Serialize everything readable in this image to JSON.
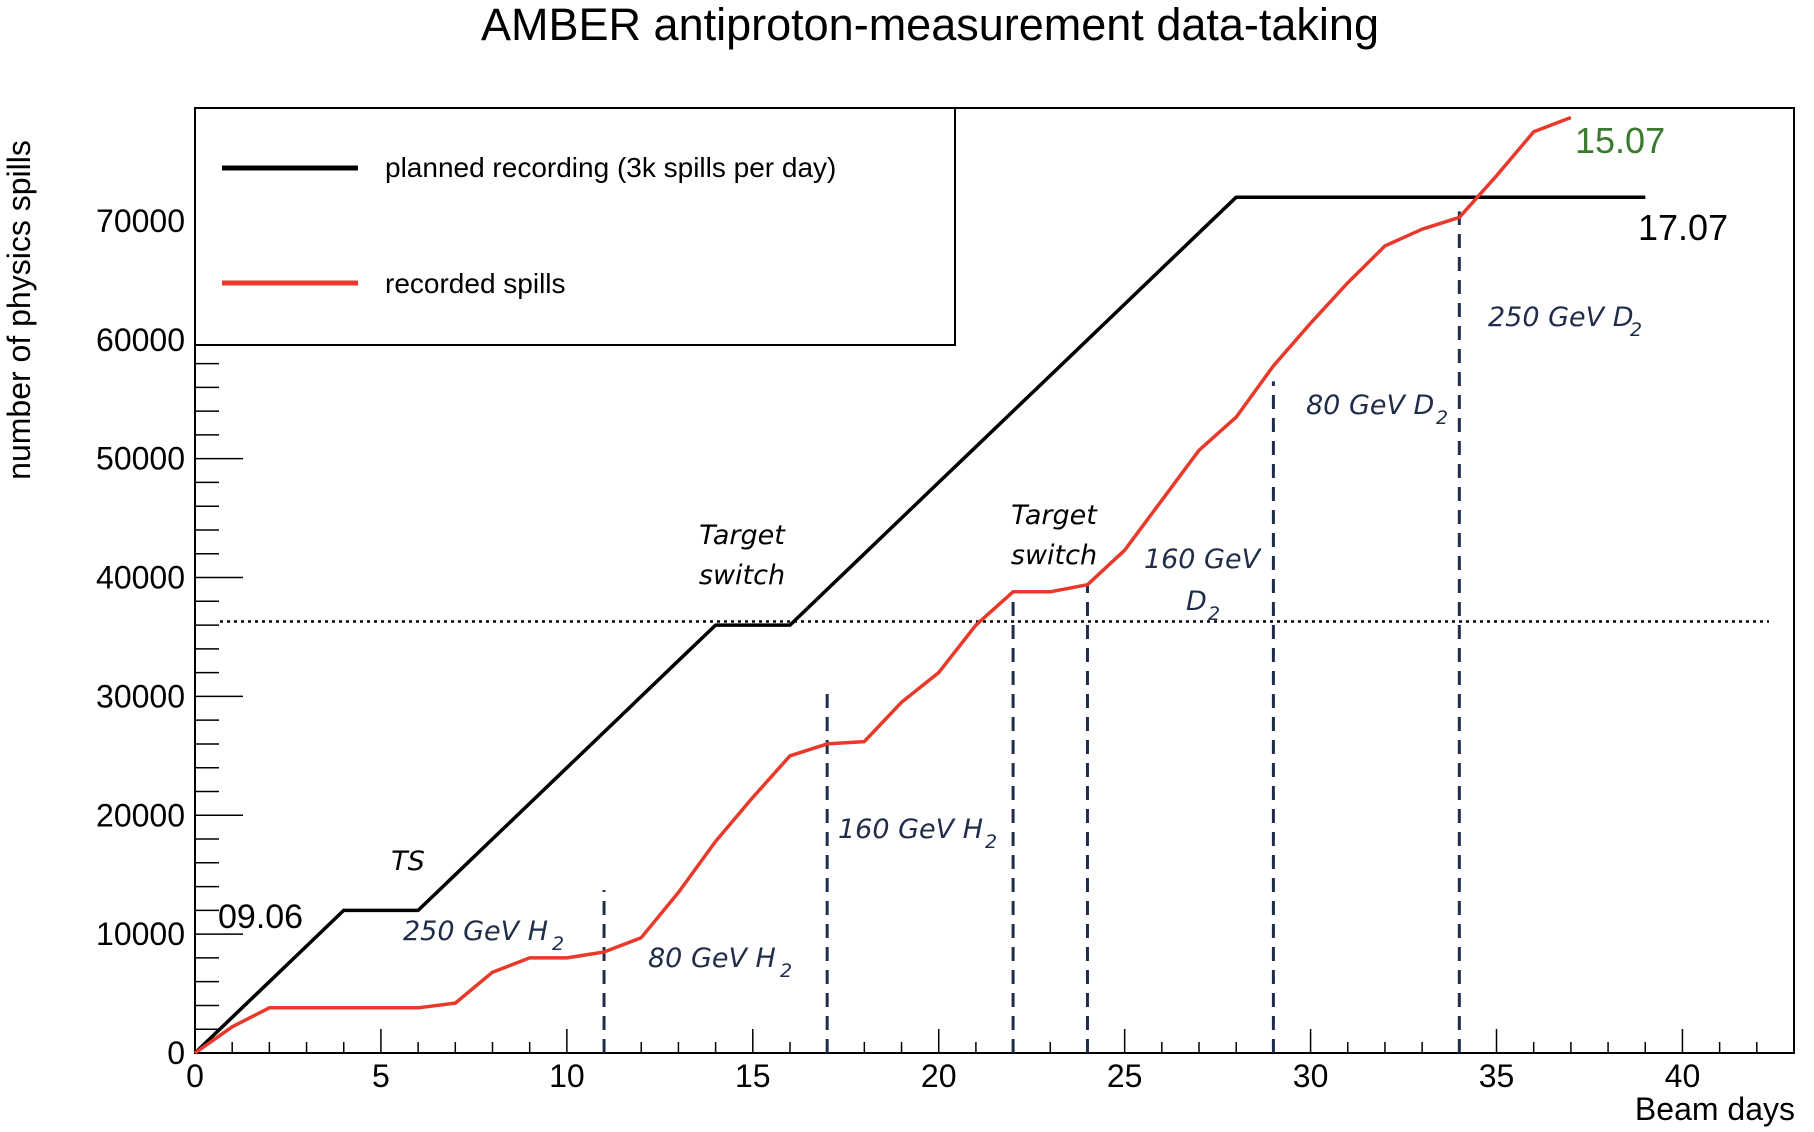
{
  "chart_data": {
    "type": "line",
    "title": "AMBER antiproton-measurement data-taking",
    "xlabel": "Beam days",
    "ylabel": "number of physics spills",
    "xlim": [
      0,
      43
    ],
    "ylim": [
      0,
      79500
    ],
    "x_ticks": [
      0,
      5,
      10,
      15,
      20,
      25,
      30,
      35,
      40
    ],
    "y_ticks": [
      0,
      10000,
      20000,
      30000,
      40000,
      50000,
      60000,
      70000
    ],
    "x_minor_step": 1,
    "y_minor_step": 2000,
    "grid": false,
    "legend_position": "top-left",
    "series": [
      {
        "name": "planned recording (3k spills per day)",
        "color": "#000000",
        "x": [
          0,
          1,
          2,
          3,
          4,
          5,
          6,
          7,
          8,
          9,
          10,
          11,
          12,
          13,
          14,
          15,
          16,
          17,
          18,
          19,
          20,
          21,
          22,
          23,
          24,
          25,
          26,
          27,
          28,
          29,
          30,
          31,
          32,
          33,
          34,
          35,
          36,
          37,
          38,
          39
        ],
        "y": [
          0,
          3000,
          6000,
          9000,
          12000,
          12000,
          12000,
          15000,
          18000,
          21000,
          24000,
          27000,
          30000,
          33000,
          36000,
          36000,
          36000,
          39000,
          42000,
          45000,
          48000,
          51000,
          54000,
          57000,
          60000,
          63000,
          66000,
          69000,
          72000,
          72000,
          72000,
          72000,
          72000,
          72000,
          72000,
          72000,
          72000,
          72000,
          72000,
          72000
        ]
      },
      {
        "name": "recorded spills",
        "color": "#e8392b",
        "x": [
          0,
          1,
          2,
          3,
          4,
          5,
          6,
          7,
          8,
          9,
          10,
          11,
          12,
          13,
          14,
          15,
          16,
          17,
          18,
          19,
          20,
          21,
          22,
          23,
          24,
          25,
          26,
          27,
          28,
          29,
          30,
          31,
          32,
          33,
          34,
          35,
          36,
          37
        ],
        "y": [
          0,
          2200,
          3800,
          3800,
          3800,
          3800,
          3800,
          4200,
          6800,
          8000,
          8000,
          8500,
          9700,
          13500,
          17800,
          21500,
          25000,
          26000,
          26200,
          29500,
          32000,
          36000,
          38800,
          38800,
          39400,
          42300,
          46500,
          50700,
          53500,
          57800,
          61400,
          64800,
          67900,
          69300,
          70300,
          73800,
          77500,
          78700
        ]
      }
    ],
    "reference_lines": [
      {
        "orientation": "horizontal",
        "y": 36300,
        "style": "dotted"
      },
      {
        "orientation": "vertical",
        "x": 11,
        "y_top": 13700,
        "style": "dashed"
      },
      {
        "orientation": "vertical",
        "x": 17,
        "y_top": 30700,
        "style": "dashed"
      },
      {
        "orientation": "vertical",
        "x": 22,
        "y_top": 38700,
        "style": "dashed"
      },
      {
        "orientation": "vertical",
        "x": 24,
        "y_top": 39300,
        "style": "dashed"
      },
      {
        "orientation": "vertical",
        "x": 29,
        "y_top": 56500,
        "style": "dashed"
      },
      {
        "orientation": "vertical",
        "x": 34,
        "y_top": 70800,
        "style": "dashed"
      }
    ],
    "date_labels": [
      {
        "text": "09.06",
        "color": "#000000"
      },
      {
        "text": "17.07",
        "color": "#000000"
      },
      {
        "text": "15.07",
        "color": "#3a7a2e"
      }
    ],
    "annotations": [
      {
        "text": "TS"
      },
      {
        "line1": "Target",
        "line2": "switch"
      },
      {
        "line1": "Target",
        "line2": "switch"
      }
    ],
    "period_labels": [
      {
        "text": "250 GeV H",
        "subscript": "2"
      },
      {
        "text": "80 GeV H",
        "subscript": "2"
      },
      {
        "text": "160 GeV H",
        "subscript": "2"
      },
      {
        "line1": "160 GeV",
        "text": "D",
        "subscript": "2"
      },
      {
        "text": "80 GeV D",
        "subscript": "2"
      },
      {
        "text": "250 GeV D",
        "subscript": "2"
      }
    ]
  }
}
